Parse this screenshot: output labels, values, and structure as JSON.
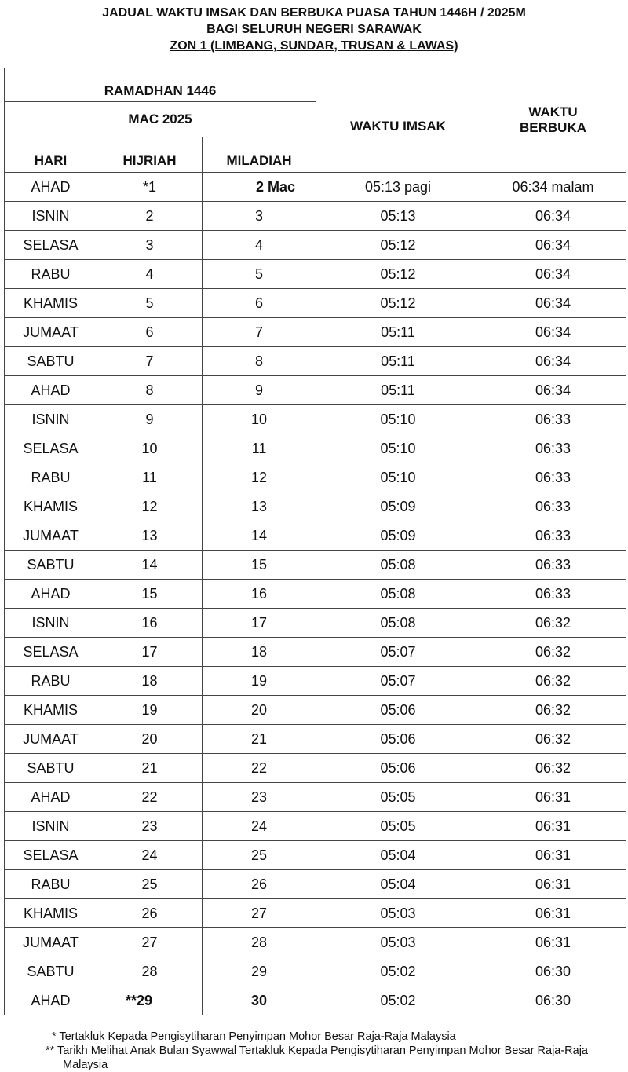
{
  "title": {
    "line1": "JADUAL WAKTU IMSAK DAN BERBUKA PUASA TAHUN 1446H / 2025M",
    "line2": "BAGI SELURUH NEGERI SARAWAK",
    "line3": "ZON 1 (LIMBANG, SUNDAR, TRUSAN & LAWAS)"
  },
  "header": {
    "ramadhan": "RAMADHAN 1446",
    "mac": "MAC 2025",
    "hari": "HARI",
    "hijriah": "HIJRIAH",
    "miladiah": "MILADIAH",
    "imsak": "WAKTU IMSAK",
    "berbuka": "WAKTU BERBUKA"
  },
  "rows": [
    [
      "AHAD",
      "*1",
      "2 Mac",
      "05:13 pagi",
      "06:34 malam"
    ],
    [
      "ISNIN",
      "2",
      "3",
      "05:13",
      "06:34"
    ],
    [
      "SELASA",
      "3",
      "4",
      "05:12",
      "06:34"
    ],
    [
      "RABU",
      "4",
      "5",
      "05:12",
      "06:34"
    ],
    [
      "KHAMIS",
      "5",
      "6",
      "05:12",
      "06:34"
    ],
    [
      "JUMAAT",
      "6",
      "7",
      "05:11",
      "06:34"
    ],
    [
      "SABTU",
      "7",
      "8",
      "05:11",
      "06:34"
    ],
    [
      "AHAD",
      "8",
      "9",
      "05:11",
      "06:34"
    ],
    [
      "ISNIN",
      "9",
      "10",
      "05:10",
      "06:33"
    ],
    [
      "SELASA",
      "10",
      "11",
      "05:10",
      "06:33"
    ],
    [
      "RABU",
      "11",
      "12",
      "05:10",
      "06:33"
    ],
    [
      "KHAMIS",
      "12",
      "13",
      "05:09",
      "06:33"
    ],
    [
      "JUMAAT",
      "13",
      "14",
      "05:09",
      "06:33"
    ],
    [
      "SABTU",
      "14",
      "15",
      "05:08",
      "06:33"
    ],
    [
      "AHAD",
      "15",
      "16",
      "05:08",
      "06:33"
    ],
    [
      "ISNIN",
      "16",
      "17",
      "05:08",
      "06:32"
    ],
    [
      "SELASA",
      "17",
      "18",
      "05:07",
      "06:32"
    ],
    [
      "RABU",
      "18",
      "19",
      "05:07",
      "06:32"
    ],
    [
      "KHAMIS",
      "19",
      "20",
      "05:06",
      "06:32"
    ],
    [
      "JUMAAT",
      "20",
      "21",
      "05:06",
      "06:32"
    ],
    [
      "SABTU",
      "21",
      "22",
      "05:06",
      "06:32"
    ],
    [
      "AHAD",
      "22",
      "23",
      "05:05",
      "06:31"
    ],
    [
      "ISNIN",
      "23",
      "24",
      "05:05",
      "06:31"
    ],
    [
      "SELASA",
      "24",
      "25",
      "05:04",
      "06:31"
    ],
    [
      "RABU",
      "25",
      "26",
      "05:04",
      "06:31"
    ],
    [
      "KHAMIS",
      "26",
      "27",
      "05:03",
      "06:31"
    ],
    [
      "JUMAAT",
      "27",
      "28",
      "05:03",
      "06:31"
    ],
    [
      "SABTU",
      "28",
      "29",
      "05:02",
      "06:30"
    ],
    [
      "AHAD",
      "**29",
      "30",
      "05:02",
      "06:30"
    ]
  ],
  "notes": {
    "note1": "* Tertakluk Kepada Pengisytiharan Penyimpan Mohor Besar Raja-Raja Malaysia",
    "note2": "** Tarikh Melihat Anak Bulan Syawwal Tertakluk Kepada Pengisytiharan Penyimpan Mohor Besar Raja-Raja Malaysia"
  }
}
